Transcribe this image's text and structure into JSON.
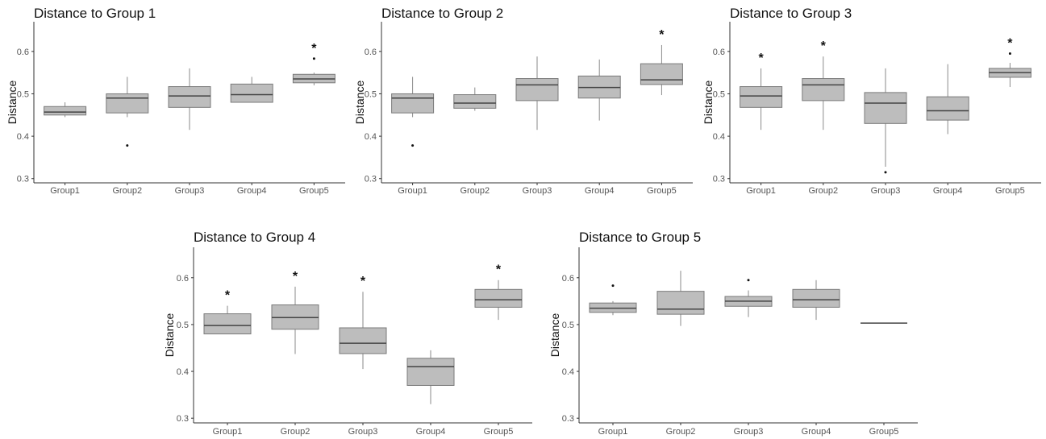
{
  "chart_data": [
    {
      "type": "boxplot",
      "title": "Distance to Group 1",
      "ylabel": "Distance",
      "categories": [
        "Group1",
        "Group2",
        "Group3",
        "Group4",
        "Group5"
      ],
      "yticks": [
        "0.3",
        "0.4",
        "0.5",
        "0.6"
      ],
      "ylim": [
        0.29,
        0.67
      ],
      "boxes": [
        {
          "whislo": 0.445,
          "q1": 0.45,
          "med": 0.457,
          "q3": 0.47,
          "whishi": 0.48,
          "outliers": [],
          "star": false
        },
        {
          "whislo": 0.445,
          "q1": 0.455,
          "med": 0.49,
          "q3": 0.5,
          "whishi": 0.54,
          "outliers": [
            0.378
          ],
          "star": false
        },
        {
          "whislo": 0.415,
          "q1": 0.468,
          "med": 0.495,
          "q3": 0.517,
          "whishi": 0.56,
          "outliers": [],
          "star": false
        },
        {
          "whislo": 0.48,
          "q1": 0.48,
          "med": 0.498,
          "q3": 0.523,
          "whishi": 0.54,
          "outliers": [],
          "star": false
        },
        {
          "whislo": 0.52,
          "q1": 0.526,
          "med": 0.535,
          "q3": 0.546,
          "whishi": 0.55,
          "outliers": [
            0.583
          ],
          "star": true
        }
      ]
    },
    {
      "type": "boxplot",
      "title": "Distance to Group 2",
      "ylabel": "Distance",
      "categories": [
        "Group1",
        "Group2",
        "Group3",
        "Group4",
        "Group5"
      ],
      "yticks": [
        "0.3",
        "0.4",
        "0.5",
        "0.6"
      ],
      "ylim": [
        0.29,
        0.67
      ],
      "boxes": [
        {
          "whislo": 0.445,
          "q1": 0.455,
          "med": 0.49,
          "q3": 0.5,
          "whishi": 0.54,
          "outliers": [
            0.378
          ],
          "star": false
        },
        {
          "whislo": 0.46,
          "q1": 0.466,
          "med": 0.478,
          "q3": 0.498,
          "whishi": 0.515,
          "outliers": [],
          "star": false
        },
        {
          "whislo": 0.415,
          "q1": 0.484,
          "med": 0.521,
          "q3": 0.536,
          "whishi": 0.588,
          "outliers": [],
          "star": false
        },
        {
          "whislo": 0.437,
          "q1": 0.49,
          "med": 0.515,
          "q3": 0.542,
          "whishi": 0.581,
          "outliers": [],
          "star": false
        },
        {
          "whislo": 0.497,
          "q1": 0.522,
          "med": 0.533,
          "q3": 0.571,
          "whishi": 0.615,
          "outliers": [],
          "star": true
        }
      ]
    },
    {
      "type": "boxplot",
      "title": "Distance to Group 3",
      "ylabel": "Distance",
      "categories": [
        "Group1",
        "Group2",
        "Group3",
        "Group4",
        "Group5"
      ],
      "yticks": [
        "0.3",
        "0.4",
        "0.5",
        "0.6"
      ],
      "ylim": [
        0.29,
        0.67
      ],
      "boxes": [
        {
          "whislo": 0.415,
          "q1": 0.468,
          "med": 0.495,
          "q3": 0.517,
          "whishi": 0.56,
          "outliers": [],
          "star": true
        },
        {
          "whislo": 0.415,
          "q1": 0.484,
          "med": 0.521,
          "q3": 0.536,
          "whishi": 0.588,
          "outliers": [],
          "star": true
        },
        {
          "whislo": 0.328,
          "q1": 0.43,
          "med": 0.478,
          "q3": 0.503,
          "whishi": 0.56,
          "outliers": [
            0.315
          ],
          "star": false
        },
        {
          "whislo": 0.405,
          "q1": 0.438,
          "med": 0.46,
          "q3": 0.493,
          "whishi": 0.57,
          "outliers": [],
          "star": false
        },
        {
          "whislo": 0.516,
          "q1": 0.539,
          "med": 0.55,
          "q3": 0.56,
          "whishi": 0.573,
          "outliers": [
            0.595
          ],
          "star": true
        }
      ]
    },
    {
      "type": "boxplot",
      "title": "Distance to Group 4",
      "ylabel": "Distance",
      "categories": [
        "Group1",
        "Group2",
        "Group3",
        "Group4",
        "Group5"
      ],
      "yticks": [
        "0.3",
        "0.4",
        "0.5",
        "0.6"
      ],
      "ylim": [
        0.29,
        0.665
      ],
      "boxes": [
        {
          "whislo": 0.48,
          "q1": 0.48,
          "med": 0.498,
          "q3": 0.523,
          "whishi": 0.54,
          "outliers": [],
          "star": true
        },
        {
          "whislo": 0.437,
          "q1": 0.49,
          "med": 0.515,
          "q3": 0.542,
          "whishi": 0.581,
          "outliers": [],
          "star": true
        },
        {
          "whislo": 0.405,
          "q1": 0.438,
          "med": 0.46,
          "q3": 0.493,
          "whishi": 0.57,
          "outliers": [],
          "star": true
        },
        {
          "whislo": 0.33,
          "q1": 0.37,
          "med": 0.41,
          "q3": 0.428,
          "whishi": 0.445,
          "outliers": [],
          "star": false
        },
        {
          "whislo": 0.51,
          "q1": 0.537,
          "med": 0.553,
          "q3": 0.575,
          "whishi": 0.595,
          "outliers": [],
          "star": true
        }
      ]
    },
    {
      "type": "boxplot",
      "title": "Distance to Group 5",
      "ylabel": "Distance",
      "categories": [
        "Group1",
        "Group2",
        "Group3",
        "Group4",
        "Group5"
      ],
      "yticks": [
        "0.3",
        "0.4",
        "0.5",
        "0.6"
      ],
      "ylim": [
        0.29,
        0.665
      ],
      "boxes": [
        {
          "whislo": 0.52,
          "q1": 0.526,
          "med": 0.535,
          "q3": 0.546,
          "whishi": 0.55,
          "outliers": [
            0.583
          ],
          "star": false
        },
        {
          "whislo": 0.497,
          "q1": 0.522,
          "med": 0.533,
          "q3": 0.571,
          "whishi": 0.615,
          "outliers": [],
          "star": false
        },
        {
          "whislo": 0.516,
          "q1": 0.539,
          "med": 0.55,
          "q3": 0.56,
          "whishi": 0.573,
          "outliers": [
            0.595
          ],
          "star": false
        },
        {
          "whislo": 0.51,
          "q1": 0.537,
          "med": 0.553,
          "q3": 0.575,
          "whishi": 0.595,
          "outliers": [],
          "star": false
        },
        {
          "whislo": 0.503,
          "q1": 0.503,
          "med": 0.503,
          "q3": 0.503,
          "whishi": 0.503,
          "outliers": [],
          "star": false
        }
      ]
    }
  ],
  "significance_marker": "*",
  "colors": {
    "box_fill": "#bdbdbd",
    "box_stroke": "#7a7a7a",
    "median": "#444444",
    "axis": "#333333"
  }
}
